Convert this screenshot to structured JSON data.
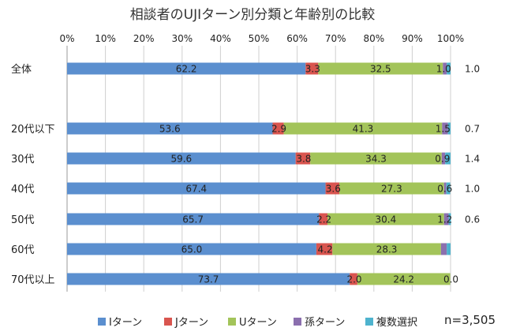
{
  "chart_data": {
    "type": "bar",
    "orientation": "horizontal",
    "stacked": true,
    "title": "相談者のUJIターン別分類と年齢別の比較",
    "xlabel": "",
    "ylabel": "",
    "xlim": [
      0,
      100
    ],
    "x_ticks": [
      "0%",
      "10%",
      "20%",
      "30%",
      "40%",
      "50%",
      "60%",
      "70%",
      "80%",
      "90%",
      "100%"
    ],
    "grid": true,
    "legend_position": "bottom",
    "categories": [
      "全体",
      "20代以下",
      "30代",
      "40代",
      "50代",
      "60代",
      "70代以上"
    ],
    "series": [
      {
        "name": "Iターン",
        "color": "#5B8FCF",
        "values": [
          62.2,
          53.6,
          59.6,
          67.4,
          65.7,
          65.0,
          73.7
        ],
        "labels": [
          "62.2",
          "53.6",
          "59.6",
          "67.4",
          "65.7",
          "65.0",
          "73.7"
        ]
      },
      {
        "name": "Jターン",
        "color": "#D9554F",
        "values": [
          3.3,
          2.9,
          3.8,
          3.6,
          2.2,
          4.2,
          2.0
        ],
        "labels": [
          "3.3",
          "2.9",
          "3.8",
          "3.6",
          "2.2",
          "4.2",
          "2.0"
        ]
      },
      {
        "name": "Uターン",
        "color": "#A3C45A",
        "values": [
          32.5,
          41.3,
          34.3,
          27.3,
          30.4,
          28.3,
          24.2
        ],
        "labels": [
          "32.5",
          "41.3",
          "34.3",
          "27.3",
          "30.4",
          "28.3",
          "24.2"
        ]
      },
      {
        "name": "孫ターン",
        "color": "#8B6FAE",
        "values": [
          1.0,
          1.5,
          0.9,
          0.6,
          1.2,
          1.5,
          0.0
        ],
        "labels": [
          "1.0",
          "1.5",
          "0.9",
          "0.6",
          "1.2",
          "",
          "0.0"
        ]
      },
      {
        "name": "複数選択",
        "color": "#4EB3CE",
        "values": [
          1.0,
          0.7,
          1.4,
          1.0,
          0.6,
          1.0,
          0.0
        ],
        "labels": [
          "1.0",
          "0.7",
          "1.4",
          "1.0",
          "0.6",
          "",
          ""
        ]
      }
    ],
    "note": "n=3,505"
  }
}
